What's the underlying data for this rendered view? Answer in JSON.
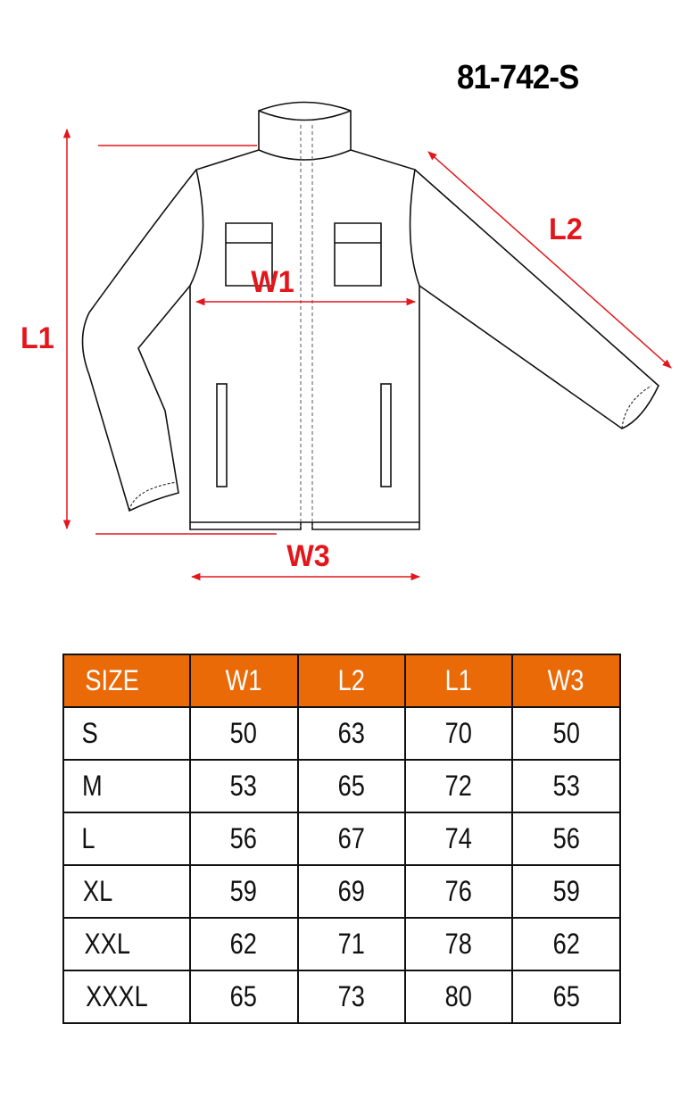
{
  "title": "81-742-S",
  "labels": {
    "l1": "L1",
    "l2": "L2",
    "w1": "W1",
    "w3": "W3"
  },
  "colors": {
    "accent_red": "#e3161b",
    "header_orange": "#ea6a08"
  },
  "table": {
    "headers": [
      "SIZE",
      "W1",
      "L2",
      "L1",
      "W3"
    ],
    "rows": [
      [
        "S",
        "50",
        "63",
        "70",
        "50"
      ],
      [
        "M",
        "53",
        "65",
        "72",
        "53"
      ],
      [
        "L",
        "56",
        "67",
        "74",
        "56"
      ],
      [
        "XL",
        "59",
        "69",
        "76",
        "59"
      ],
      [
        "XXL",
        "62",
        "71",
        "78",
        "62"
      ],
      [
        "XXXL",
        "65",
        "73",
        "80",
        "65"
      ]
    ]
  }
}
